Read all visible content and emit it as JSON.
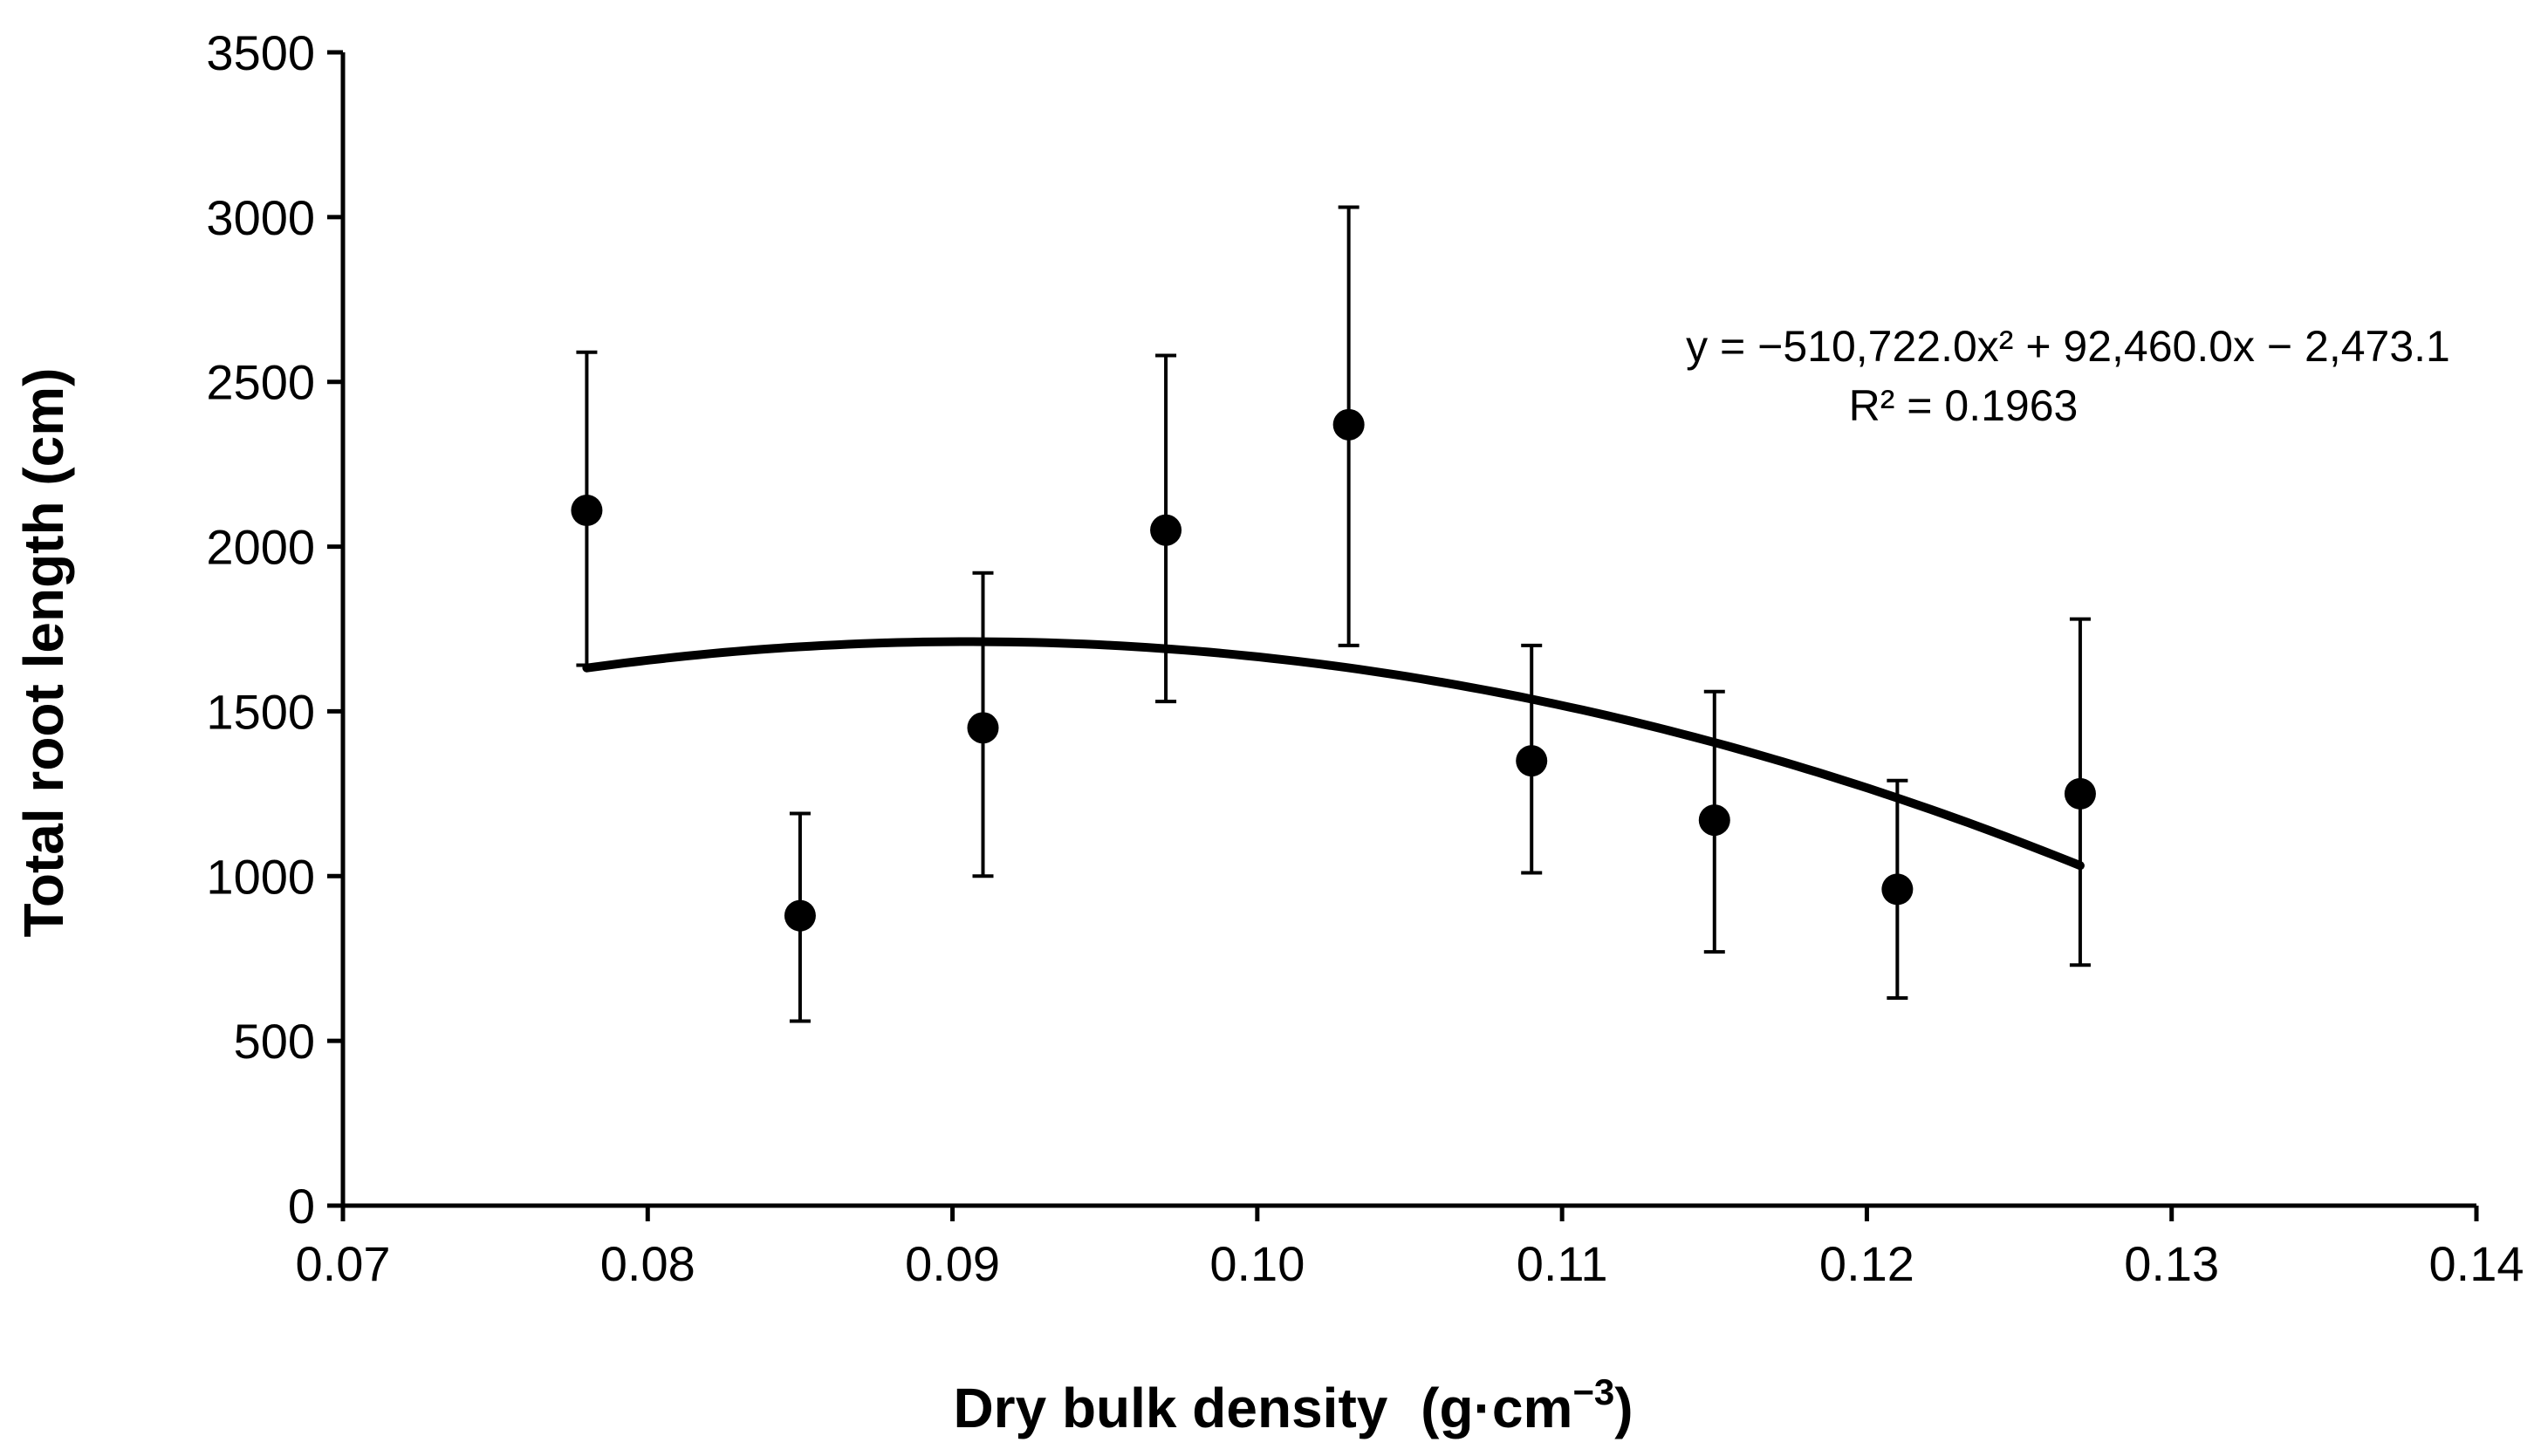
{
  "chart_data": {
    "type": "scatter",
    "title": "",
    "xlabel": "Dry bulk density",
    "xlabel_unit": "(g·cm",
    "xlabel_unit_exp": "−3",
    "xlabel_unit_close": ")",
    "ylabel": "Total root length (cm)",
    "xlim": [
      0.07,
      0.14
    ],
    "ylim": [
      0,
      3500
    ],
    "x_ticks": [
      0.07,
      0.08,
      0.09,
      0.1,
      0.11,
      0.12,
      0.13,
      0.14
    ],
    "x_tick_labels": [
      "0.07",
      "0.08",
      "0.09",
      "0.10",
      "0.11",
      "0.12",
      "0.13",
      "0.14"
    ],
    "y_ticks": [
      0,
      500,
      1000,
      1500,
      2000,
      2500,
      3000,
      3500
    ],
    "y_tick_labels": [
      "0",
      "500",
      "1000",
      "1500",
      "2000",
      "2500",
      "3000",
      "3500"
    ],
    "grid": false,
    "series": [
      {
        "name": "Total root length",
        "points": [
          {
            "x": 0.078,
            "y": 2110,
            "err_low": 1640,
            "err_high": 2590
          },
          {
            "x": 0.085,
            "y": 880,
            "err_low": 560,
            "err_high": 1190
          },
          {
            "x": 0.091,
            "y": 1450,
            "err_low": 1000,
            "err_high": 1920
          },
          {
            "x": 0.097,
            "y": 2050,
            "err_low": 1530,
            "err_high": 2580
          },
          {
            "x": 0.103,
            "y": 2370,
            "err_low": 1700,
            "err_high": 3030
          },
          {
            "x": 0.109,
            "y": 1350,
            "err_low": 1010,
            "err_high": 1700
          },
          {
            "x": 0.115,
            "y": 1170,
            "err_low": 770,
            "err_high": 1560
          },
          {
            "x": 0.121,
            "y": 960,
            "err_low": 630,
            "err_high": 1290
          },
          {
            "x": 0.127,
            "y": 1250,
            "err_low": 730,
            "err_high": 1780
          }
        ]
      }
    ],
    "trendline": {
      "type": "polynomial",
      "coefficients": [
        -510722.0,
        92460.0,
        -2473.1
      ],
      "x_range": [
        0.078,
        0.127
      ]
    },
    "annotations": {
      "equation_text": "y = −510,722.0x² + 92,460.0x − 2,473.1",
      "r2_text": "R² = 0.1963"
    }
  }
}
